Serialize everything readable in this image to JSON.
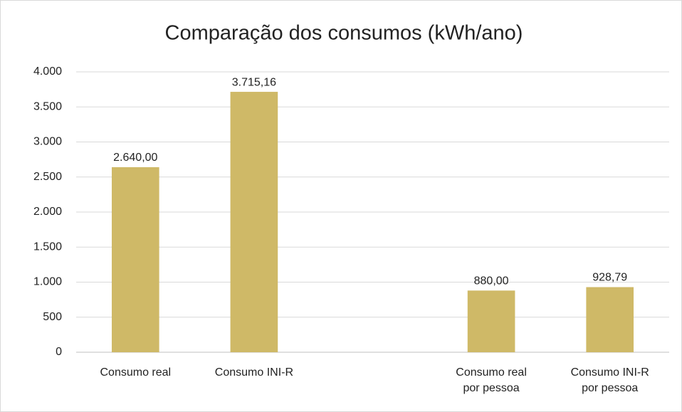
{
  "chart_data": {
    "type": "bar",
    "title": "Comparação dos consumos (kWh/ano)",
    "categories": [
      "Consumo real",
      "Consumo INI-R",
      null,
      "Consumo real por pessoa",
      "Consumo INI-R por pessoa"
    ],
    "values": [
      2640,
      3715.16,
      null,
      880,
      928.79
    ],
    "value_labels": [
      "2.640,00",
      "3.715,16",
      null,
      "880,00",
      "928,79"
    ],
    "color": "#cfb967",
    "ylim": [
      0,
      4000
    ],
    "yticks": [
      0,
      500,
      {
        "value": 1000,
        "label": "1.000"
      },
      {
        "value": 1500,
        "label": "1.500"
      },
      {
        "value": 2000,
        "label": "2.000"
      },
      {
        "value": 2500,
        "label": "2.500"
      },
      {
        "value": 3000,
        "label": "3.000"
      },
      {
        "value": 3500,
        "label": "3.500"
      },
      {
        "value": 4000,
        "label": "4.000"
      }
    ],
    "grid": true
  }
}
